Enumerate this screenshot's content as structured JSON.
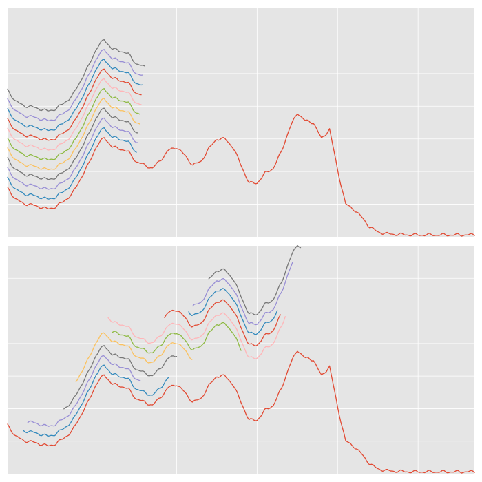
{
  "chart_data": [
    {
      "panel": "top",
      "type": "line",
      "style": "ggplot",
      "grid": true,
      "tick_labels_shown": false,
      "xlim": [
        -0.1,
        5.7
      ],
      "ylim": [
        0,
        7
      ],
      "palette": [
        "#E24A33",
        "#348ABD",
        "#988ED5",
        "#777777",
        "#FBC15E",
        "#8EBA42",
        "#FFB5B8"
      ],
      "base_series": {
        "x": [
          -0.1,
          0.0,
          0.1,
          0.2,
          0.3,
          0.4,
          0.5,
          0.6,
          0.7,
          0.8,
          0.9,
          1.0,
          1.1,
          1.2,
          1.3,
          1.4,
          1.5,
          1.6,
          1.7,
          1.8,
          1.9,
          2.0,
          2.1,
          2.2,
          2.3,
          2.4,
          2.5,
          2.6,
          2.7,
          2.8,
          2.9,
          3.0,
          3.1,
          3.2,
          3.3,
          3.4,
          3.5,
          3.6,
          3.7,
          3.8,
          3.9,
          4.0,
          4.1,
          4.2,
          4.3,
          4.4,
          4.5,
          4.6,
          4.7,
          4.8,
          4.9,
          5.0,
          5.1,
          5.2,
          5.3,
          5.4,
          5.5,
          5.6,
          5.7
        ],
        "y": [
          1.5,
          1.15,
          1.02,
          0.98,
          0.92,
          0.85,
          0.92,
          1.1,
          1.3,
          1.75,
          2.2,
          2.75,
          3.05,
          2.75,
          2.7,
          2.6,
          2.3,
          2.2,
          2.1,
          2.35,
          2.65,
          2.75,
          2.5,
          2.2,
          2.3,
          2.7,
          3.0,
          3.0,
          2.75,
          2.2,
          1.65,
          1.65,
          1.95,
          2.1,
          2.6,
          3.3,
          3.8,
          3.55,
          3.5,
          3.0,
          3.3,
          2.05,
          1.0,
          0.85,
          0.6,
          0.3,
          0.15,
          0.1,
          0.08,
          0.07,
          0.06,
          0.06,
          0.06,
          0.06,
          0.06,
          0.06,
          0.06,
          0.06,
          0.06
        ]
      },
      "stacked_copies": {
        "count": 10,
        "x_start": -0.1,
        "x_end": 1.5,
        "y_offset_step": 0.3
      }
    },
    {
      "panel": "bottom",
      "type": "line",
      "style": "ggplot",
      "grid": true,
      "tick_labels_shown": false,
      "xlim": [
        -0.1,
        5.7
      ],
      "ylim": [
        0,
        7
      ],
      "base_series_same_as_top": true,
      "staggered_copies": [
        {
          "x_start": 0.1,
          "x_end": 1.9,
          "y_offset": 0.3
        },
        {
          "x_start": 0.15,
          "x_end": 1.55,
          "y_offset": 0.6
        },
        {
          "x_start": 0.6,
          "x_end": 2.0,
          "y_offset": 0.9
        },
        {
          "x_start": 0.75,
          "x_end": 2.2,
          "y_offset": 1.3
        },
        {
          "x_start": 1.2,
          "x_end": 2.8,
          "y_offset": 1.6
        },
        {
          "x_start": 1.15,
          "x_end": 3.35,
          "y_offset": 1.9
        },
        {
          "x_start": 1.85,
          "x_end": 3.3,
          "y_offset": 2.3
        },
        {
          "x_start": 2.15,
          "x_end": 3.25,
          "y_offset": 2.65
        },
        {
          "x_start": 2.2,
          "x_end": 3.45,
          "y_offset": 2.95
        },
        {
          "x_start": 2.4,
          "x_end": 3.55,
          "y_offset": 3.25
        }
      ]
    }
  ]
}
